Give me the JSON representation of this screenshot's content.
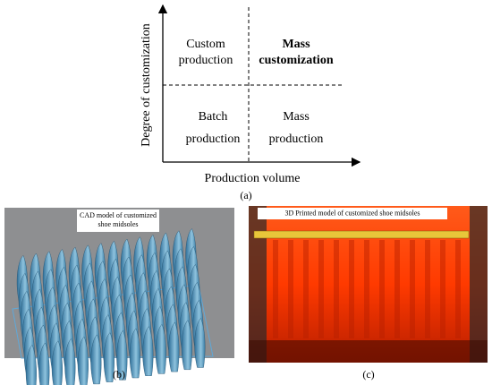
{
  "diagram": {
    "y_axis_label": "Degree of customization",
    "x_axis_label": "Production volume",
    "quadrants": [
      {
        "lines": [
          "Custom",
          "production"
        ]
      },
      {
        "lines": [
          "Mass",
          "customization"
        ]
      },
      {
        "lines": [
          "Batch",
          "production"
        ]
      },
      {
        "lines": [
          "Mass",
          "production"
        ]
      }
    ],
    "caption": "(a)"
  },
  "panels": [
    {
      "label_lines": [
        "CAD model of customized",
        "shoe midsoles"
      ],
      "caption": "(b)"
    },
    {
      "label_lines": [
        "3D Printed model of customized shoe midsoles"
      ],
      "caption": "(c)"
    }
  ]
}
